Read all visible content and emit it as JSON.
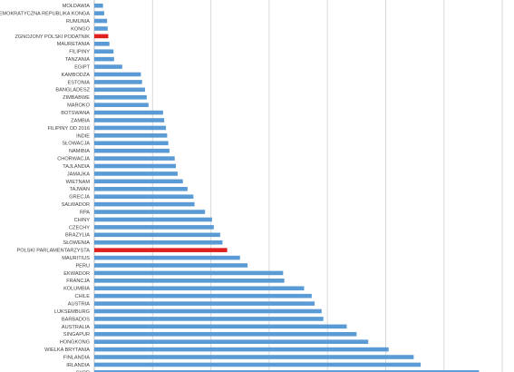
{
  "chart_data": {
    "type": "bar",
    "orientation": "horizontal",
    "title": "",
    "xlabel": "",
    "ylabel": "",
    "grid": true,
    "legend": "none",
    "colors": {
      "bar": "#5b9bd5",
      "highlight": "#e02020",
      "grid": "#d9d9d9",
      "label": "#404040"
    },
    "xlim": [
      0,
      10
    ],
    "gridlines": [
      0,
      1,
      2,
      3,
      4,
      5,
      6,
      7
    ],
    "highlighted": [
      "ZGNOJONY POLSKI PODATNIK",
      "POLSKI PARLAMENTARZYSTA"
    ],
    "categories": [
      "MOŁDAWIA",
      "DEMOKRATYCZNA REPUBLIKA KONGA",
      "RUMUNIA",
      "KONGO",
      "ZGNOJONY POLSKI PODATNIK",
      "MAURETANIA",
      "FILIPINY",
      "TANZANIA",
      "EGIPT",
      "KAMBODŻA",
      "ESTONIA",
      "BANGLADESZ",
      "ZIMBABWE",
      "MAROKO",
      "BOTSWANA",
      "ZAMBIA",
      "FILIPINY OD 2016",
      "INDIE",
      "SŁOWACJA",
      "NAMIBIA",
      "CHORWACJA",
      "TAJLANDIA",
      "JAMAJKA",
      "WIETNAM",
      "TAJWAN",
      "GRECJA",
      "SALWADOR",
      "RPA",
      "CHINY",
      "CZECHY",
      "BRAZYLIA",
      "SŁOWENIA",
      "POLSKI PARLAMENTARZYSTA",
      "MAURITIUS",
      "PERU",
      "EKWADOR",
      "FRANCJA",
      "KOLUMBIA",
      "CHILE",
      "AUSTRIA",
      "LUKSEMBURG",
      "BARBADOS",
      "AUSTRALIA",
      "SINGAPUR",
      "HONGKONG",
      "WIELKA BRYTANIA",
      "FINLANDIA",
      "IRLANDIA",
      "CYPR"
    ],
    "values": [
      0.15,
      0.17,
      0.22,
      0.23,
      0.24,
      0.26,
      0.33,
      0.34,
      0.48,
      0.8,
      0.82,
      0.87,
      0.9,
      0.93,
      1.18,
      1.2,
      1.23,
      1.25,
      1.27,
      1.29,
      1.38,
      1.4,
      1.43,
      1.52,
      1.6,
      1.7,
      1.72,
      1.9,
      2.02,
      2.05,
      2.16,
      2.2,
      2.28,
      2.5,
      2.63,
      3.24,
      3.26,
      3.6,
      3.73,
      3.78,
      3.9,
      3.93,
      4.33,
      4.5,
      4.7,
      5.05,
      5.48,
      5.6,
      6.6
    ]
  }
}
